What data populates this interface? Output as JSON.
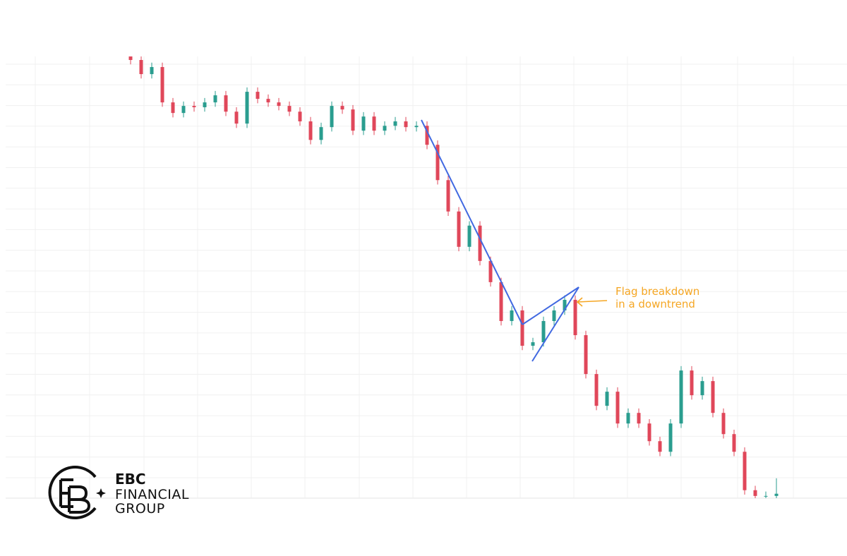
{
  "chart_data": {
    "type": "candlestick",
    "annotation": [
      "Flag breakdown",
      "in a downtrend"
    ],
    "up_color": "#2a9d8f",
    "down_color": "#e0475a",
    "ylim": [
      0,
      100
    ],
    "grid": true,
    "open": [
      101.0,
      99.2,
      96.0,
      97.6,
      89.6,
      87.2,
      88.8,
      88.5,
      89.6,
      91.2,
      87.5,
      84.8,
      92.0,
      90.4,
      89.6,
      88.8,
      87.5,
      85.3,
      81.1,
      84.0,
      88.8,
      88.0,
      83.2,
      86.4,
      83.2,
      84.3,
      85.3,
      84.0,
      84.3,
      80.0,
      72.0,
      64.9,
      56.9,
      61.7,
      53.7,
      48.9,
      40.1,
      42.5,
      34.5,
      35.3,
      40.1,
      42.5,
      44.9,
      36.9,
      28.1,
      20.9,
      24.1,
      16.9,
      19.3,
      16.9,
      12.9,
      10.5,
      16.9,
      28.9,
      23.3,
      26.5,
      19.3,
      14.5,
      10.5,
      1.8,
      0.5,
      0.5
    ],
    "high": [
      102.0,
      100.2,
      98.6,
      98.6,
      90.6,
      89.8,
      89.8,
      90.6,
      92.2,
      92.2,
      88.5,
      93.0,
      93.0,
      91.4,
      90.6,
      89.8,
      88.5,
      86.3,
      85.0,
      89.8,
      89.8,
      89.0,
      87.4,
      87.4,
      85.3,
      86.3,
      86.3,
      85.3,
      85.3,
      81.0,
      73.0,
      65.9,
      62.7,
      62.7,
      54.7,
      49.9,
      43.5,
      43.5,
      36.3,
      41.1,
      43.5,
      45.9,
      45.9,
      37.9,
      29.1,
      25.1,
      25.1,
      20.3,
      20.3,
      17.9,
      13.9,
      17.9,
      29.9,
      29.9,
      27.5,
      27.5,
      20.3,
      15.5,
      11.5,
      2.8,
      1.5,
      4.5
    ],
    "low": [
      98.2,
      95.0,
      95.0,
      88.6,
      86.2,
      86.2,
      87.5,
      87.5,
      88.6,
      86.5,
      83.8,
      83.8,
      89.4,
      88.6,
      87.8,
      86.5,
      84.3,
      80.1,
      80.1,
      83.0,
      87.0,
      82.2,
      82.2,
      82.2,
      82.2,
      83.3,
      83.0,
      83.0,
      79.0,
      71.0,
      63.9,
      55.9,
      55.9,
      52.7,
      47.9,
      39.1,
      39.1,
      33.5,
      33.5,
      34.3,
      39.1,
      41.5,
      35.9,
      27.1,
      19.9,
      19.9,
      15.9,
      15.9,
      15.9,
      11.9,
      9.5,
      9.5,
      15.9,
      22.3,
      22.3,
      18.3,
      13.5,
      9.5,
      0.8,
      -0.5,
      -0.5,
      -0.5
    ],
    "close": [
      99.2,
      96.0,
      97.6,
      89.6,
      87.2,
      88.8,
      88.5,
      89.6,
      91.2,
      87.5,
      84.8,
      92.0,
      90.4,
      89.6,
      88.8,
      87.5,
      85.3,
      81.1,
      84.0,
      88.8,
      88.0,
      83.2,
      86.4,
      83.2,
      84.3,
      85.3,
      84.0,
      84.3,
      80.0,
      72.0,
      64.9,
      56.9,
      61.7,
      53.7,
      48.9,
      40.1,
      42.5,
      34.5,
      35.3,
      40.1,
      42.5,
      44.9,
      36.9,
      28.1,
      20.9,
      24.1,
      16.9,
      19.3,
      16.9,
      12.9,
      10.5,
      16.9,
      28.9,
      23.3,
      26.5,
      19.3,
      14.5,
      10.5,
      1.8,
      0.5,
      0.5,
      1.0
    ]
  },
  "logo": {
    "line1": "EBC",
    "line2": "FINANCIAL",
    "line3": "GROUP"
  }
}
